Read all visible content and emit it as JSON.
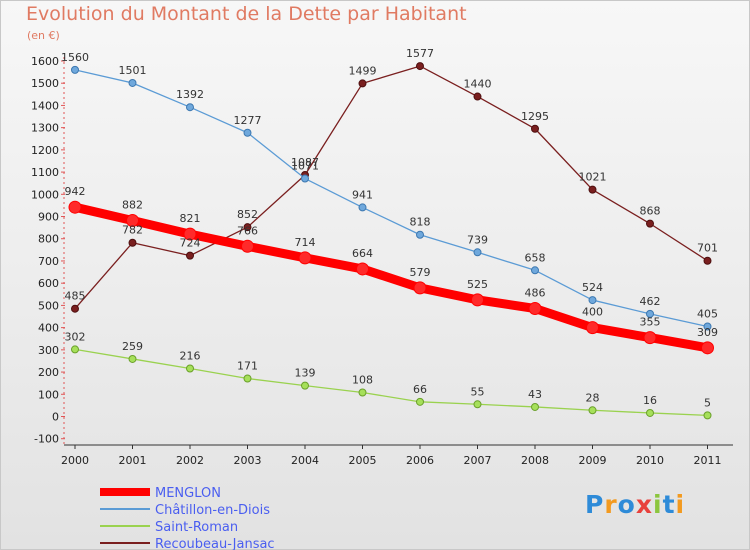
{
  "chart_data": {
    "type": "line",
    "title": "Evolution du Montant de la Dette par Habitant",
    "subtitle": "(en €)",
    "x": [
      "2000",
      "2001",
      "2002",
      "2003",
      "2004",
      "2005",
      "2006",
      "2007",
      "2008",
      "2009",
      "2010",
      "2011"
    ],
    "ylim": [
      -100,
      1600
    ],
    "yticks": [
      -100,
      0,
      100,
      200,
      300,
      400,
      500,
      600,
      700,
      800,
      900,
      1000,
      1100,
      1200,
      1300,
      1400,
      1500,
      1600
    ],
    "grid": false,
    "legend_position": "bottom-left",
    "series": [
      {
        "name": "MENGLON",
        "color": "#ff0000",
        "values": [
          942,
          882,
          821,
          766,
          714,
          664,
          579,
          525,
          486,
          400,
          355,
          309
        ]
      },
      {
        "name": "Châtillon-en-Diois",
        "color": "#5b9bd5",
        "values": [
          1560,
          1501,
          1392,
          1277,
          1071,
          941,
          818,
          739,
          658,
          524,
          462,
          405
        ]
      },
      {
        "name": "Saint-Roman",
        "color": "#9ad24f",
        "values": [
          302,
          259,
          216,
          171,
          139,
          108,
          66,
          55,
          43,
          28,
          16,
          5
        ]
      },
      {
        "name": "Recoubeau-Jansac",
        "color": "#7a1f1f",
        "values": [
          485,
          782,
          724,
          852,
          1087,
          1499,
          1577,
          1440,
          1295,
          1021,
          868,
          701
        ]
      }
    ]
  },
  "logo": {
    "text": "Proxiti",
    "letters": [
      "P",
      "r",
      "o",
      "x",
      "i",
      "t",
      "i"
    ],
    "colors": [
      "#2e8bd8",
      "#f39a1f",
      "#2e8bd8",
      "#e8413c",
      "#8cc63f",
      "#2e8bd8",
      "#f39a1f"
    ]
  }
}
